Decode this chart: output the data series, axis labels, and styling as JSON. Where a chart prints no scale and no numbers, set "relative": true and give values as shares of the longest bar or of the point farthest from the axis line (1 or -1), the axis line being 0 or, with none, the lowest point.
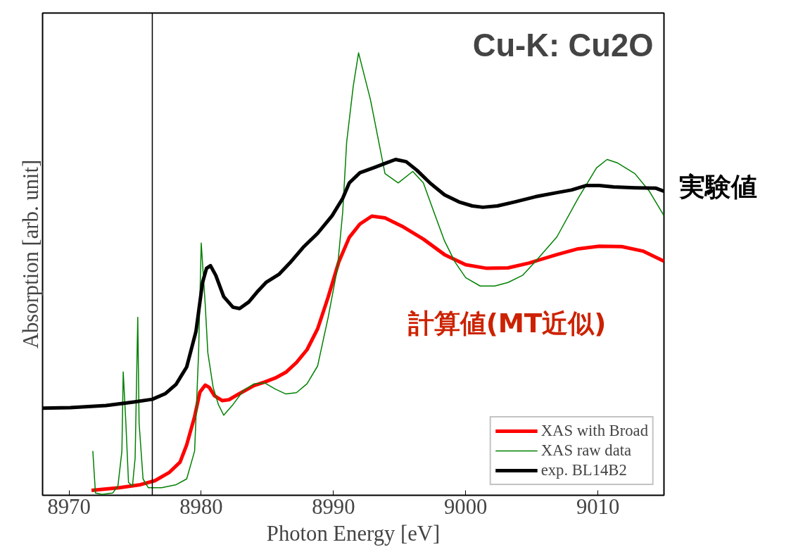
{
  "chart_data": {
    "type": "line",
    "title": "Cu-K: Cu2O",
    "xlabel": "Photon Energy [eV]",
    "ylabel": "Absorption [arb. unit]",
    "relative": true,
    "xlim": [
      8968,
      9015
    ],
    "xticks": [
      8970,
      8980,
      8990,
      9000,
      9010
    ],
    "grid": false,
    "legend": "bottom right",
    "line_style": "solid",
    "marker": "none",
    "annotations": [
      "実験値",
      "計算値(MT近似)"
    ],
    "ref_lines": [
      {
        "axis": "x",
        "value": 8976.3,
        "color": "#000000"
      }
    ],
    "series": [
      {
        "name": "XAS with Broad",
        "color": "#ff0000",
        "x": [
          8971.7,
          8973.8,
          8975.4,
          8976.5,
          8977.6,
          8978.4,
          8978.9,
          8979.5,
          8979.9,
          8980.3,
          8980.6,
          8981.0,
          8981.6,
          8982.1,
          8982.9,
          8984.0,
          8984.8,
          8985.6,
          8986.4,
          8987.2,
          8988.0,
          8988.8,
          8989.6,
          8990.4,
          8991.2,
          8992.0,
          8992.9,
          8993.9,
          8995.2,
          8996.8,
          8998.4,
          9000.0,
          9001.6,
          9003.2,
          9004.8,
          9006.9,
          9008.5,
          9010.1,
          9011.8,
          9013.4,
          9015.0
        ],
        "values": [
          0.011,
          0.017,
          0.024,
          0.033,
          0.052,
          0.075,
          0.114,
          0.178,
          0.233,
          0.249,
          0.244,
          0.225,
          0.214,
          0.216,
          0.23,
          0.248,
          0.256,
          0.265,
          0.278,
          0.3,
          0.329,
          0.376,
          0.448,
          0.527,
          0.583,
          0.613,
          0.631,
          0.627,
          0.608,
          0.579,
          0.544,
          0.521,
          0.513,
          0.514,
          0.525,
          0.544,
          0.557,
          0.563,
          0.562,
          0.552,
          0.529
        ]
      },
      {
        "name": "XAS raw data",
        "color": "#008000",
        "x": [
          8971.8,
          8972.0,
          8972.5,
          8973.3,
          8973.7,
          8974.0,
          8974.1,
          8974.3,
          8974.5,
          8974.8,
          8975.0,
          8975.2,
          8975.3,
          8975.6,
          8976.0,
          8977.0,
          8978.1,
          8978.9,
          8979.5,
          8979.8,
          8980.0,
          8980.3,
          8980.5,
          8980.9,
          8981.3,
          8981.7,
          8982.4,
          8983.2,
          8984.0,
          8984.8,
          8985.6,
          8986.4,
          8987.2,
          8988.0,
          8988.8,
          8989.6,
          8990.3,
          8990.7,
          8991.0,
          8991.5,
          8991.9,
          8992.8,
          8993.9,
          8994.9,
          8996.0,
          8996.8,
          8997.6,
          8998.4,
          8999.2,
          9000.0,
          9001.1,
          9002.2,
          9003.2,
          9004.3,
          9005.3,
          9006.9,
          9008.5,
          9009.9,
          9010.7,
          9011.5,
          9012.8,
          9013.9,
          9015.0
        ],
        "values": [
          0.1,
          0.005,
          0.002,
          0.005,
          0.021,
          0.1,
          0.279,
          0.163,
          0.029,
          0.021,
          0.084,
          0.402,
          0.163,
          0.037,
          0.017,
          0.017,
          0.024,
          0.037,
          0.1,
          0.322,
          0.57,
          0.432,
          0.322,
          0.244,
          0.205,
          0.181,
          0.205,
          0.237,
          0.252,
          0.254,
          0.24,
          0.229,
          0.232,
          0.252,
          0.292,
          0.402,
          0.513,
          0.64,
          0.798,
          0.925,
          1.0,
          0.894,
          0.727,
          0.706,
          0.732,
          0.706,
          0.64,
          0.575,
          0.527,
          0.492,
          0.473,
          0.473,
          0.481,
          0.497,
          0.529,
          0.584,
          0.671,
          0.74,
          0.759,
          0.751,
          0.727,
          0.687,
          0.632
        ]
      },
      {
        "name": "exp. BL14B2",
        "color": "#000000",
        "x": [
          8968.0,
          8970.1,
          8972.8,
          8974.9,
          8976.3,
          8977.3,
          8978.1,
          8978.9,
          8979.6,
          8980.1,
          8980.4,
          8980.7,
          8981.1,
          8981.7,
          8982.4,
          8982.9,
          8983.6,
          8984.3,
          8984.9,
          8985.9,
          8986.7,
          8987.7,
          8988.8,
          8989.9,
          8990.7,
          8991.2,
          8992.0,
          8993.1,
          8993.9,
          8994.7,
          8995.5,
          8996.3,
          8997.3,
          8998.4,
          8999.5,
          9000.5,
          9001.3,
          9002.4,
          9003.7,
          9005.3,
          9006.9,
          9008.0,
          9009.1,
          9010.1,
          9011.2,
          9012.8,
          9014.4,
          9015.0
        ],
        "values": [
          0.197,
          0.198,
          0.203,
          0.211,
          0.217,
          0.23,
          0.251,
          0.29,
          0.37,
          0.481,
          0.513,
          0.519,
          0.497,
          0.449,
          0.425,
          0.422,
          0.437,
          0.462,
          0.481,
          0.5,
          0.525,
          0.56,
          0.592,
          0.632,
          0.671,
          0.706,
          0.729,
          0.741,
          0.75,
          0.759,
          0.754,
          0.735,
          0.706,
          0.679,
          0.663,
          0.654,
          0.651,
          0.654,
          0.663,
          0.675,
          0.684,
          0.69,
          0.7,
          0.7,
          0.697,
          0.695,
          0.694,
          0.687
        ]
      }
    ]
  }
}
